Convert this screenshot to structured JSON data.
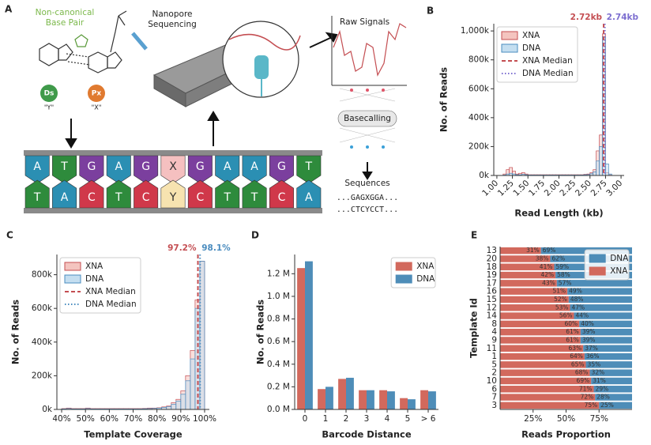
{
  "diagram": {
    "label": "A",
    "base_pair_title": [
      "Non-canonical",
      "Base Pair"
    ],
    "ds": "Ds",
    "ds_code": "\"Y\"",
    "px": "Px",
    "px_code": "\"X\"",
    "sequencing": [
      "Nanopore",
      "Sequencing"
    ],
    "raw_signals": "Raw Signals",
    "basecalling": "Basecalling",
    "sequences": "Sequences",
    "sequence_top": "...GAGXGGA...",
    "sequence_bottom": "...CTCYCCT...",
    "top_strand": [
      "A",
      "T",
      "G",
      "A",
      "G",
      "X",
      "G",
      "A",
      "A",
      "G",
      "T"
    ],
    "bottom_strand": [
      "T",
      "A",
      "C",
      "T",
      "C",
      "Y",
      "C",
      "T",
      "T",
      "C",
      "A"
    ]
  },
  "chart_data": [
    {
      "type": "histogram",
      "label": "B",
      "xlabel": "Read Length (kb)",
      "ylabel": "No. of Reads",
      "bins": [
        1.1,
        1.15,
        1.2,
        1.25,
        1.3,
        1.35,
        1.4,
        1.45,
        1.5,
        1.55,
        1.6,
        1.65,
        1.7,
        1.75,
        1.8,
        1.85,
        1.9,
        1.95,
        2.0,
        2.05,
        2.1,
        2.15,
        2.2,
        2.25,
        2.3,
        2.35,
        2.4,
        2.45,
        2.5,
        2.55,
        2.6,
        2.65,
        2.7,
        2.75,
        2.8,
        2.85,
        2.9
      ],
      "series": [
        {
          "name": "XNA",
          "color": "#f4c4bf",
          "edgecolor": "#c44e52",
          "values": [
            10000,
            40000,
            55000,
            30000,
            10000,
            15000,
            20000,
            10000,
            5000,
            5000,
            5000,
            5000,
            5000,
            5000,
            5000,
            5000,
            5000,
            5000,
            5000,
            5000,
            5000,
            5000,
            5000,
            5000,
            5000,
            5000,
            8000,
            10000,
            20000,
            40000,
            170000,
            280000,
            980000,
            20000,
            5000,
            0
          ]
        },
        {
          "name": "DNA",
          "color": "#c4def0",
          "edgecolor": "#4a8cbf",
          "values": [
            3000,
            10000,
            15000,
            10000,
            5000,
            5000,
            8000,
            5000,
            3000,
            3000,
            3000,
            3000,
            3000,
            3000,
            3000,
            3000,
            3000,
            3000,
            3000,
            3000,
            3000,
            3000,
            3000,
            3000,
            3000,
            3000,
            5000,
            6000,
            12000,
            25000,
            100000,
            200000,
            960000,
            80000,
            10000,
            0
          ]
        }
      ],
      "medians": [
        {
          "name": "XNA Median",
          "value": 2.72,
          "label": "2.72kb",
          "color": "#c44e52",
          "style": "dashed"
        },
        {
          "name": "DNA Median",
          "value": 2.74,
          "label": "2.74kb",
          "color": "#7d6fd0",
          "style": "dotted"
        }
      ],
      "xlim": [
        0.95,
        3.05
      ],
      "xticks": [
        {
          "value": 1,
          "label": "1.00"
        },
        {
          "value": 1.25,
          "label": "1.25"
        },
        {
          "value": 1.5,
          "label": "1.50"
        },
        {
          "value": 1.75,
          "label": "1.75"
        },
        {
          "value": 2,
          "label": "2.00"
        },
        {
          "value": 2.25,
          "label": "2.25"
        },
        {
          "value": 2.5,
          "label": "2.50"
        },
        {
          "value": 2.75,
          "label": "2.75"
        },
        {
          "value": 3,
          "label": "3.00"
        }
      ],
      "ylim": [
        0,
        1050000
      ],
      "yticks": [
        {
          "value": 0,
          "label": "0k"
        },
        {
          "value": 200000,
          "label": "200k"
        },
        {
          "value": 400000,
          "label": "400k"
        },
        {
          "value": 600000,
          "label": "600k"
        },
        {
          "value": 800000,
          "label": "800k"
        },
        {
          "value": 1000000,
          "label": "1,000k"
        }
      ],
      "legend": "upper left"
    },
    {
      "type": "histogram",
      "label": "C",
      "xlabel": "Template Coverage",
      "ylabel": "No. of Reads",
      "bins": [
        40,
        42,
        44,
        46,
        48,
        50,
        52,
        54,
        56,
        58,
        60,
        62,
        64,
        66,
        68,
        70,
        72,
        74,
        76,
        78,
        80,
        82,
        84,
        86,
        88,
        90,
        92,
        94,
        96,
        98,
        100
      ],
      "series": [
        {
          "name": "XNA",
          "color": "#f4c4bf",
          "edgecolor": "#c44e52",
          "values": [
            5000,
            8000,
            5000,
            5000,
            5000,
            8000,
            5000,
            5000,
            5000,
            5000,
            5000,
            5000,
            5000,
            5000,
            5000,
            5000,
            5000,
            6000,
            8000,
            8000,
            10000,
            15000,
            20000,
            40000,
            60000,
            110000,
            200000,
            350000,
            650000,
            880000
          ]
        },
        {
          "name": "DNA",
          "color": "#c4def0",
          "edgecolor": "#4a8cbf",
          "values": [
            3000,
            5000,
            3000,
            3000,
            3000,
            5000,
            3000,
            3000,
            3000,
            3000,
            3000,
            3000,
            3000,
            3000,
            3000,
            3000,
            3000,
            4000,
            5000,
            6000,
            8000,
            12000,
            16000,
            30000,
            50000,
            90000,
            170000,
            300000,
            600000,
            880000
          ]
        }
      ],
      "medians": [
        {
          "name": "XNA Median",
          "value": 97.2,
          "label": "97.2%",
          "color": "#c44e52",
          "style": "dashed"
        },
        {
          "name": "DNA Median",
          "value": 98.1,
          "label": "98.1%",
          "color": "#4a8cbf",
          "style": "dotted"
        }
      ],
      "xlim": [
        38,
        102
      ],
      "xticks": [
        {
          "value": 40,
          "label": "40%"
        },
        {
          "value": 50,
          "label": "50%"
        },
        {
          "value": 60,
          "label": "60%"
        },
        {
          "value": 70,
          "label": "70%"
        },
        {
          "value": 80,
          "label": "80%"
        },
        {
          "value": 90,
          "label": "90%"
        },
        {
          "value": 100,
          "label": "100%"
        }
      ],
      "ylim": [
        0,
        920000
      ],
      "yticks": [
        {
          "value": 0,
          "label": "0k"
        },
        {
          "value": 200000,
          "label": "200k"
        },
        {
          "value": 400000,
          "label": "400k"
        },
        {
          "value": 600000,
          "label": "600k"
        },
        {
          "value": 800000,
          "label": "800k"
        }
      ],
      "legend": "upper left"
    },
    {
      "type": "bar",
      "label": "D",
      "xlabel": "Barcode Distance",
      "ylabel": "No. of Reads",
      "categories": [
        "0",
        "1",
        "2",
        "3",
        "4",
        "5",
        "> 6"
      ],
      "series": [
        {
          "name": "XNA",
          "color": "#d2695d",
          "values": [
            1.25,
            0.18,
            0.27,
            0.17,
            0.17,
            0.1,
            0.17
          ]
        },
        {
          "name": "DNA",
          "color": "#4e8db8",
          "values": [
            1.31,
            0.2,
            0.28,
            0.17,
            0.16,
            0.09,
            0.16
          ]
        }
      ],
      "ylim": [
        0,
        1.37
      ],
      "yticks": [
        {
          "value": 0,
          "label": "0.0 M"
        },
        {
          "value": 0.2,
          "label": "0.2 M"
        },
        {
          "value": 0.4,
          "label": "0.4 M"
        },
        {
          "value": 0.6,
          "label": "0.6 M"
        },
        {
          "value": 0.8,
          "label": "0.8 M"
        },
        {
          "value": 1.0,
          "label": "1.0 M"
        },
        {
          "value": 1.2,
          "label": "1.2 M"
        }
      ],
      "legend": "upper right"
    },
    {
      "type": "stacked_barh",
      "label": "E",
      "xlabel": "Reads Proportion",
      "ylabel": "Template Id",
      "categories": [
        "13",
        "20",
        "18",
        "19",
        "17",
        "16",
        "15",
        "12",
        "14",
        "8",
        "4",
        "9",
        "11",
        "1",
        "5",
        "2",
        "10",
        "6",
        "7",
        "3"
      ],
      "series": [
        {
          "name": "XNA",
          "color": "#d2695d",
          "values": [
            31,
            38,
            41,
            42,
            43,
            51,
            52,
            53,
            56,
            60,
            61,
            61,
            63,
            64,
            65,
            68,
            69,
            71,
            72,
            75
          ],
          "value_labels": [
            "31%",
            "38%",
            "41%",
            "42%",
            "43%",
            "51%",
            "52%",
            "53%",
            "56%",
            "60%",
            "61%",
            "61%",
            "63%",
            "64%",
            "65%",
            "68%",
            "69%",
            "71%",
            "72%",
            "75%"
          ]
        },
        {
          "name": "DNA",
          "color": "#4e8db8",
          "values": [
            69,
            62,
            59,
            58,
            57,
            49,
            48,
            47,
            44,
            40,
            39,
            39,
            37,
            36,
            35,
            32,
            31,
            29,
            28,
            25
          ],
          "value_labels": [
            "69%",
            "62%",
            "59%",
            "58%",
            "57%",
            "49%",
            "48%",
            "47%",
            "44%",
            "40%",
            "39%",
            "39%",
            "37%",
            "36%",
            "35%",
            "32%",
            "31%",
            "29%",
            "28%",
            "25%"
          ]
        }
      ],
      "xlim": [
        0,
        100
      ],
      "xticks": [
        {
          "value": 25,
          "label": "25%"
        },
        {
          "value": 50,
          "label": "50%"
        },
        {
          "value": 75,
          "label": "75%"
        }
      ],
      "legend": "upper right"
    }
  ]
}
